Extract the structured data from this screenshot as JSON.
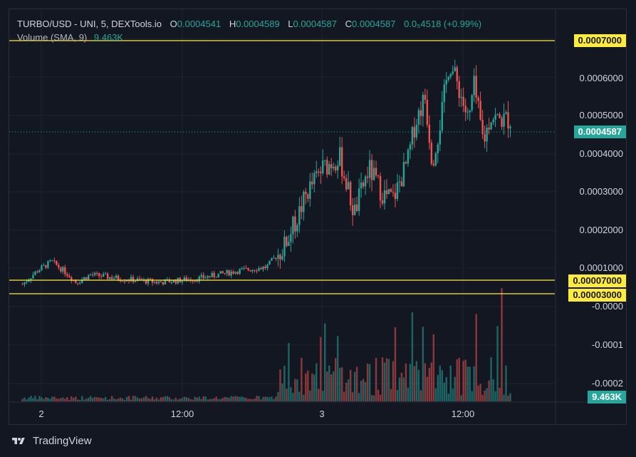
{
  "header": {
    "symbol": "TURBO/USD - UNI, 5, DEXTools.io",
    "ohlc": [
      {
        "key": "O",
        "value": "0.0004541"
      },
      {
        "key": "H",
        "value": "0.0004589"
      },
      {
        "key": "L",
        "value": "0.0004587"
      },
      {
        "key": "C",
        "value": "0.0004587"
      }
    ],
    "change": "0.0₅4518 (+0.99%)",
    "volume_label": "Volume (SMA, 9)",
    "volume_value": "9.463K"
  },
  "price_axis": {
    "labels": [
      "0.0006000",
      "0.0005000",
      "0.0004000",
      "0.0003000",
      "0.0002000",
      "0.0001000",
      "-0.0000",
      "-0.0001",
      "-0.0002"
    ]
  },
  "tags": {
    "line_top": "0.0007000",
    "current_price": "0.0004587",
    "line_mid": "0.00007000",
    "line_low": "0.00003000",
    "volume": "9.463K"
  },
  "time_axis": {
    "labels": [
      "2",
      "12:00",
      "3",
      "12:00"
    ]
  },
  "footer": {
    "brand": "TradingView"
  },
  "colors": {
    "up": "#26a69a",
    "down": "#ef5350",
    "horizontal_lines": "#ffeb3b",
    "background": "#131722"
  },
  "chart_data": {
    "type": "candlestick",
    "x_range": [
      "2",
      "12:00",
      "3",
      "12:00"
    ],
    "y_range": [
      0,
      0.0007
    ],
    "horizontal_lines": [
      0.0007,
      7e-05,
      3e-05
    ],
    "current_price": 0.0004587,
    "close_path": [
      {
        "t": 0.0,
        "price": 2.5e-05
      },
      {
        "t": 0.03,
        "price": 6e-05
      },
      {
        "t": 0.06,
        "price": 8.5e-05
      },
      {
        "t": 0.09,
        "price": 5.5e-05
      },
      {
        "t": 0.11,
        "price": 3e-05
      },
      {
        "t": 0.14,
        "price": 5e-05
      },
      {
        "t": 0.2,
        "price": 4e-05
      },
      {
        "t": 0.28,
        "price": 3e-05
      },
      {
        "t": 0.36,
        "price": 4e-05
      },
      {
        "t": 0.44,
        "price": 6e-05
      },
      {
        "t": 0.5,
        "price": 7e-05
      },
      {
        "t": 0.535,
        "price": 0.00012
      },
      {
        "t": 0.56,
        "price": 0.00019
      },
      {
        "t": 0.585,
        "price": 0.00027
      },
      {
        "t": 0.615,
        "price": 0.00033
      },
      {
        "t": 0.65,
        "price": 0.00036
      },
      {
        "t": 0.68,
        "price": 0.00021
      },
      {
        "t": 0.71,
        "price": 0.00033
      },
      {
        "t": 0.74,
        "price": 0.00026
      },
      {
        "t": 0.76,
        "price": 0.00025
      },
      {
        "t": 0.79,
        "price": 0.00035
      },
      {
        "t": 0.805,
        "price": 0.00045
      },
      {
        "t": 0.825,
        "price": 0.00052
      },
      {
        "t": 0.84,
        "price": 0.00035
      },
      {
        "t": 0.855,
        "price": 0.00044
      },
      {
        "t": 0.875,
        "price": 0.00061
      },
      {
        "t": 0.895,
        "price": 0.00054
      },
      {
        "t": 0.915,
        "price": 0.00045
      },
      {
        "t": 0.925,
        "price": 0.00055
      },
      {
        "t": 0.945,
        "price": 0.0004
      },
      {
        "t": 0.96,
        "price": 0.00047
      },
      {
        "t": 0.975,
        "price": 0.0004587
      }
    ]
  }
}
